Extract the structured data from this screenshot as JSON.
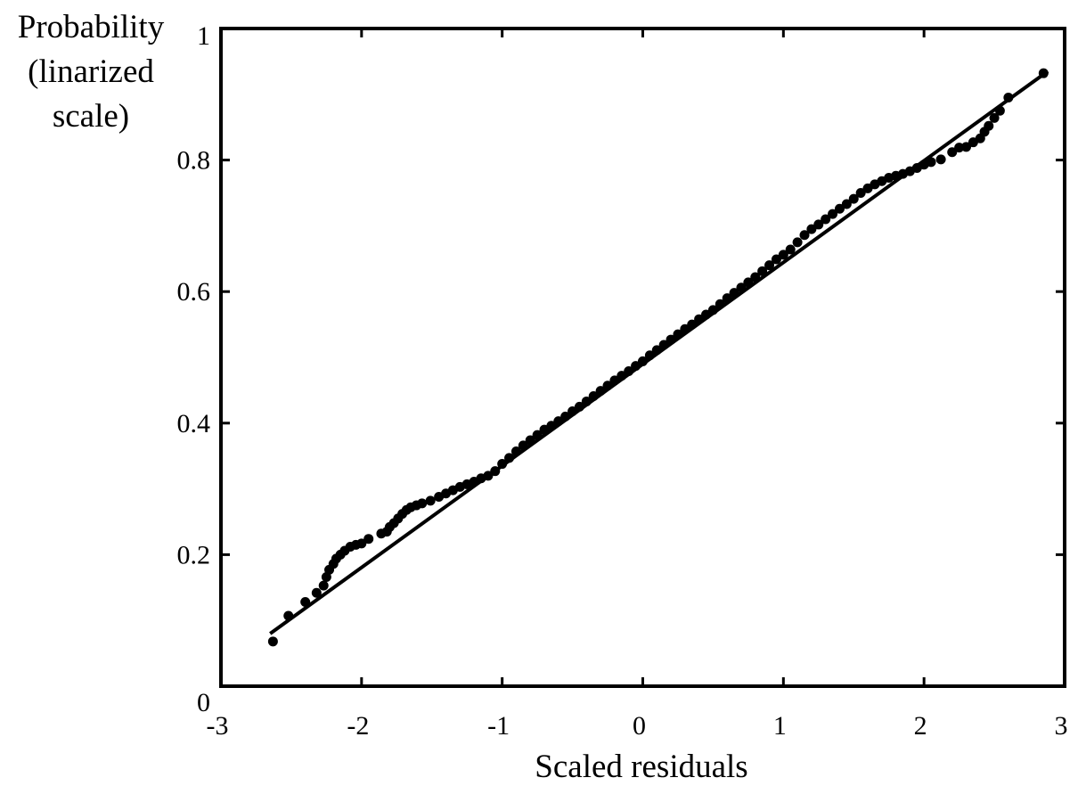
{
  "chart_data": {
    "type": "scatter",
    "title": "",
    "xlabel": "Scaled residuals",
    "ylabel_lines": [
      "Probability",
      "(linarized",
      "scale)"
    ],
    "xlim": [
      -3,
      3
    ],
    "ylim": [
      0,
      1
    ],
    "x_ticks": [
      -3,
      -2,
      -1,
      0,
      1,
      2,
      3
    ],
    "y_ticks": [
      0,
      0.2,
      0.4,
      0.6,
      0.8,
      1
    ],
    "x_tick_labels": [
      "-3",
      "-2",
      "-1",
      "0",
      "1",
      "2",
      "3"
    ],
    "y_tick_labels": [
      "0",
      "0.2",
      "0.4",
      "0.6",
      "0.8",
      "1"
    ],
    "grid": false,
    "legend": "none",
    "colors": {
      "points": "#000000",
      "line": "#000000",
      "frame": "#000000"
    },
    "fit_line": {
      "x": [
        -2.65,
        2.88
      ],
      "y": [
        0.08,
        0.935
      ]
    },
    "series": [
      {
        "x": [
          -2.63,
          -2.52,
          -2.4,
          -2.32,
          -2.27,
          -2.25,
          -2.23,
          -2.2,
          -2.18,
          -2.15,
          -2.12,
          -2.08,
          -2.04,
          -2.0,
          -1.95,
          -1.86,
          -1.82,
          -1.8,
          -1.77,
          -1.74,
          -1.71,
          -1.68,
          -1.65,
          -1.61,
          -1.57,
          -1.51,
          -1.45,
          -1.4,
          -1.35,
          -1.3,
          -1.25,
          -1.2,
          -1.15,
          -1.1,
          -1.05,
          -1.0,
          -0.95,
          -0.9,
          -0.85,
          -0.8,
          -0.75,
          -0.7,
          -0.65,
          -0.6,
          -0.55,
          -0.5,
          -0.45,
          -0.4,
          -0.35,
          -0.3,
          -0.25,
          -0.2,
          -0.15,
          -0.1,
          -0.05,
          0.0,
          0.05,
          0.1,
          0.15,
          0.2,
          0.25,
          0.3,
          0.35,
          0.4,
          0.45,
          0.5,
          0.55,
          0.6,
          0.65,
          0.7,
          0.75,
          0.8,
          0.85,
          0.9,
          0.95,
          1.0,
          1.05,
          1.1,
          1.15,
          1.2,
          1.25,
          1.3,
          1.35,
          1.4,
          1.45,
          1.5,
          1.55,
          1.6,
          1.65,
          1.7,
          1.75,
          1.8,
          1.85,
          1.9,
          1.95,
          2.0,
          2.05,
          2.12,
          2.2,
          2.25,
          2.3,
          2.35,
          2.4,
          2.43,
          2.46,
          2.5,
          2.54,
          2.6,
          2.85
        ],
        "y": [
          0.068,
          0.107,
          0.128,
          0.142,
          0.153,
          0.166,
          0.177,
          0.186,
          0.194,
          0.2,
          0.206,
          0.212,
          0.215,
          0.217,
          0.224,
          0.232,
          0.235,
          0.242,
          0.248,
          0.255,
          0.262,
          0.268,
          0.272,
          0.275,
          0.278,
          0.282,
          0.288,
          0.293,
          0.298,
          0.303,
          0.307,
          0.311,
          0.316,
          0.32,
          0.327,
          0.338,
          0.347,
          0.357,
          0.366,
          0.374,
          0.382,
          0.39,
          0.396,
          0.403,
          0.41,
          0.418,
          0.425,
          0.433,
          0.441,
          0.449,
          0.457,
          0.465,
          0.472,
          0.479,
          0.487,
          0.494,
          0.503,
          0.511,
          0.519,
          0.527,
          0.535,
          0.543,
          0.55,
          0.558,
          0.565,
          0.572,
          0.581,
          0.59,
          0.598,
          0.606,
          0.614,
          0.622,
          0.631,
          0.64,
          0.649,
          0.656,
          0.664,
          0.675,
          0.686,
          0.695,
          0.702,
          0.71,
          0.718,
          0.726,
          0.733,
          0.741,
          0.75,
          0.757,
          0.763,
          0.768,
          0.773,
          0.776,
          0.779,
          0.783,
          0.788,
          0.793,
          0.797,
          0.801,
          0.812,
          0.819,
          0.82,
          0.827,
          0.833,
          0.843,
          0.852,
          0.864,
          0.875,
          0.895,
          0.932
        ]
      }
    ]
  }
}
